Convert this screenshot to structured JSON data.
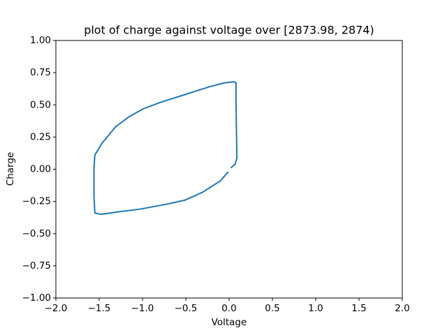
{
  "chart_data": {
    "type": "line",
    "title": "plot of charge against voltage over [2873.98, 2874)",
    "x_label": "Voltage",
    "y_label": "Charge",
    "xlim": [
      -2,
      2
    ],
    "ylim": [
      -1,
      1
    ],
    "xticks": [
      {
        "value": -2,
        "label": "−2.0"
      },
      {
        "value": -1.5,
        "label": "−1.5"
      },
      {
        "value": -1,
        "label": "−1.0"
      },
      {
        "value": -0.5,
        "label": "−0.5"
      },
      {
        "value": 0,
        "label": "0.0"
      },
      {
        "value": 0.5,
        "label": "0.5"
      },
      {
        "value": 1,
        "label": "1.0"
      },
      {
        "value": 1.5,
        "label": "1.5"
      },
      {
        "value": 2,
        "label": "2.0"
      }
    ],
    "yticks": [
      {
        "value": -1,
        "label": "−1.00"
      },
      {
        "value": -0.75,
        "label": "−0.75"
      },
      {
        "value": -0.5,
        "label": "−0.50"
      },
      {
        "value": -0.25,
        "label": "−0.25"
      },
      {
        "value": 0,
        "label": "0.00"
      },
      {
        "value": 0.25,
        "label": "0.25"
      },
      {
        "value": 0.5,
        "label": "0.50"
      },
      {
        "value": 0.75,
        "label": "0.75"
      },
      {
        "value": 1,
        "label": "1.00"
      }
    ],
    "grid": false,
    "series": [
      {
        "color": "#1f77b4",
        "x": [
          -0.01,
          -0.1,
          -0.31,
          -0.51,
          -0.71,
          -1.03,
          -1.27,
          -1.48,
          -1.55,
          -1.56,
          -1.56,
          -1.55,
          -1.47,
          -1.31,
          -1.15,
          -0.99,
          -0.79,
          -0.51,
          -0.23,
          -0.06,
          0.06,
          0.08,
          0.08,
          0.09,
          0.07,
          0.02
        ],
        "values": [
          -0.02,
          -0.09,
          -0.18,
          -0.24,
          -0.27,
          -0.31,
          -0.33,
          -0.35,
          -0.34,
          -0.21,
          0.01,
          0.11,
          0.2,
          0.33,
          0.41,
          0.47,
          0.52,
          0.58,
          0.64,
          0.67,
          0.68,
          0.67,
          0.5,
          0.09,
          0.04,
          0.01
        ]
      }
    ]
  }
}
